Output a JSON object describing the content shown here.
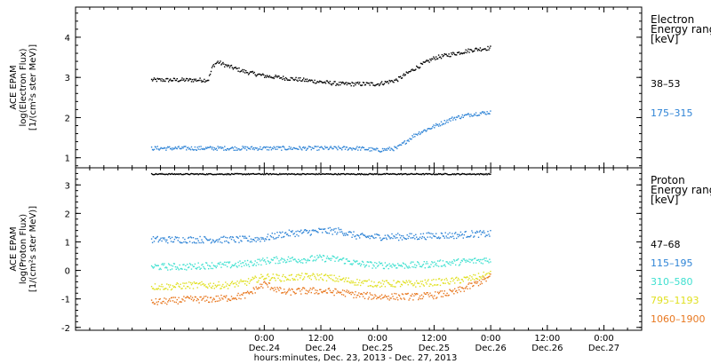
{
  "chart_data": [
    {
      "type": "scatter",
      "panel": "electron",
      "ylabel_lines": [
        "ACE EPAM",
        "log(Electron Flux)",
        "[1/(cm²s ster MeV)]"
      ],
      "ylim": [
        0.75,
        4.75
      ],
      "yticks": [
        1,
        2,
        3,
        4
      ],
      "legend_title_lines": [
        "Electron",
        "Energy ranges",
        "[keV]"
      ],
      "x_hours_since_dec23_0000": [
        0,
        4,
        8,
        12,
        13,
        14,
        16,
        20,
        24,
        28,
        32,
        36,
        40,
        44,
        48,
        52,
        56,
        60,
        64,
        68,
        72
      ],
      "series": [
        {
          "name": "38–53",
          "color": "#000000",
          "values": [
            2.95,
            2.95,
            2.95,
            2.95,
            3.3,
            3.4,
            3.3,
            3.15,
            3.05,
            3.0,
            2.95,
            2.9,
            2.85,
            2.85,
            2.85,
            2.95,
            3.25,
            3.5,
            3.6,
            3.7,
            3.75
          ]
        },
        {
          "name": "175–315",
          "color": "#2f84d6",
          "values": [
            1.25,
            1.25,
            1.25,
            1.25,
            1.25,
            1.25,
            1.25,
            1.25,
            1.25,
            1.25,
            1.25,
            1.25,
            1.25,
            1.25,
            1.2,
            1.25,
            1.6,
            1.8,
            2.0,
            2.1,
            2.15
          ]
        }
      ]
    },
    {
      "type": "scatter",
      "panel": "proton",
      "ylabel_lines": [
        "ACE EPAM",
        "log(Proton Flux)",
        "[1/(cm²s ster MeV)]"
      ],
      "ylim": [
        -2.1,
        3.6
      ],
      "yticks": [
        -2,
        -1,
        0,
        1,
        2,
        3
      ],
      "legend_title_lines": [
        "Proton",
        "Energy ranges",
        "[keV]"
      ],
      "x_hours_since_dec23_0000": [
        0,
        4,
        8,
        12,
        16,
        20,
        24,
        28,
        32,
        36,
        40,
        44,
        48,
        52,
        56,
        60,
        64,
        68,
        72
      ],
      "series": [
        {
          "name": "47–68",
          "color": "#000000",
          "values": [
            3.4,
            3.4,
            3.4,
            3.4,
            3.4,
            3.4,
            3.4,
            3.4,
            3.4,
            3.4,
            3.4,
            3.4,
            3.4,
            3.4,
            3.4,
            3.4,
            3.4,
            3.4,
            3.4
          ]
        },
        {
          "name": "115–195",
          "color": "#2f84d6",
          "values": [
            1.1,
            1.1,
            1.1,
            1.1,
            1.1,
            1.1,
            1.15,
            1.3,
            1.35,
            1.4,
            1.4,
            1.2,
            1.2,
            1.2,
            1.2,
            1.25,
            1.25,
            1.3,
            1.3
          ]
        },
        {
          "name": "310–580",
          "color": "#40e0d0",
          "values": [
            0.15,
            0.15,
            0.15,
            0.2,
            0.2,
            0.25,
            0.35,
            0.4,
            0.4,
            0.45,
            0.4,
            0.25,
            0.2,
            0.2,
            0.2,
            0.25,
            0.3,
            0.35,
            0.4
          ]
        },
        {
          "name": "795–1193",
          "color": "#e0e020",
          "values": [
            -0.55,
            -0.55,
            -0.5,
            -0.5,
            -0.5,
            -0.4,
            -0.2,
            -0.25,
            -0.2,
            -0.2,
            -0.3,
            -0.4,
            -0.45,
            -0.45,
            -0.45,
            -0.4,
            -0.35,
            -0.25,
            -0.1
          ]
        },
        {
          "name": "1060–1900",
          "color": "#e87820",
          "values": [
            -1.1,
            -1.05,
            -1.0,
            -1.0,
            -0.95,
            -0.85,
            -0.45,
            -0.75,
            -0.7,
            -0.7,
            -0.75,
            -0.85,
            -0.9,
            -0.9,
            -0.9,
            -0.85,
            -0.75,
            -0.5,
            -0.2
          ]
        }
      ]
    }
  ],
  "x_axis": {
    "ticks": [
      {
        "time": "0:00",
        "day": "Dec.24"
      },
      {
        "time": "12:00",
        "day": "Dec.24"
      },
      {
        "time": "0:00",
        "day": "Dec.25"
      },
      {
        "time": "12:00",
        "day": "Dec.25"
      },
      {
        "time": "0:00",
        "day": "Dec.26"
      },
      {
        "time": "12:00",
        "day": "Dec.26"
      },
      {
        "time": "0:00",
        "day": "Dec.27"
      }
    ],
    "title": "hours:minutes, Dec. 23, 2013 - Dec. 27, 2013"
  }
}
